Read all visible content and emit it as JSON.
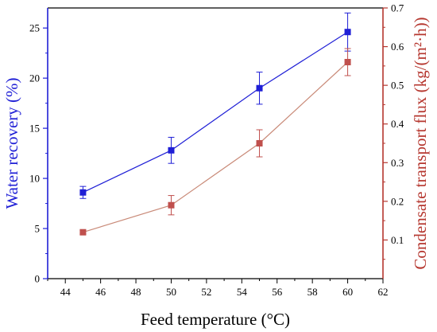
{
  "chart_data": {
    "type": "line",
    "xlabel": "Feed temperature (°C)",
    "ylabel_left": "Water recovery (%)",
    "ylabel_right": "Condensate transport flux (kg/(m²·h))",
    "xlim": [
      43,
      62
    ],
    "x_ticks": [
      44,
      46,
      48,
      50,
      52,
      54,
      56,
      58,
      60,
      62
    ],
    "ylim_left": [
      0,
      27
    ],
    "y_ticks_left": [
      0,
      5,
      10,
      15,
      20,
      25
    ],
    "ylim_right": [
      0.0,
      0.7
    ],
    "y_ticks_right": [
      "0.1",
      "0.2",
      "0.3",
      "0.4",
      "0.5",
      "0.6",
      "0.7"
    ],
    "series": [
      {
        "axis": "left",
        "color": "#1f1fd6",
        "marker": "square",
        "x": [
          45,
          50,
          55,
          60
        ],
        "y": [
          8.6,
          12.8,
          19.0,
          24.6
        ],
        "err": [
          0.6,
          1.3,
          1.6,
          1.9
        ]
      },
      {
        "axis": "right",
        "color": "#c0504d",
        "line_color": "#c98a78",
        "marker": "square",
        "x": [
          45,
          50,
          55,
          60
        ],
        "y": [
          0.12,
          0.19,
          0.35,
          0.56
        ],
        "err": [
          0.005,
          0.025,
          0.035,
          0.035
        ]
      }
    ],
    "colors": {
      "left_axis": "#1f1fd6",
      "right_axis": "#b5362e"
    }
  }
}
